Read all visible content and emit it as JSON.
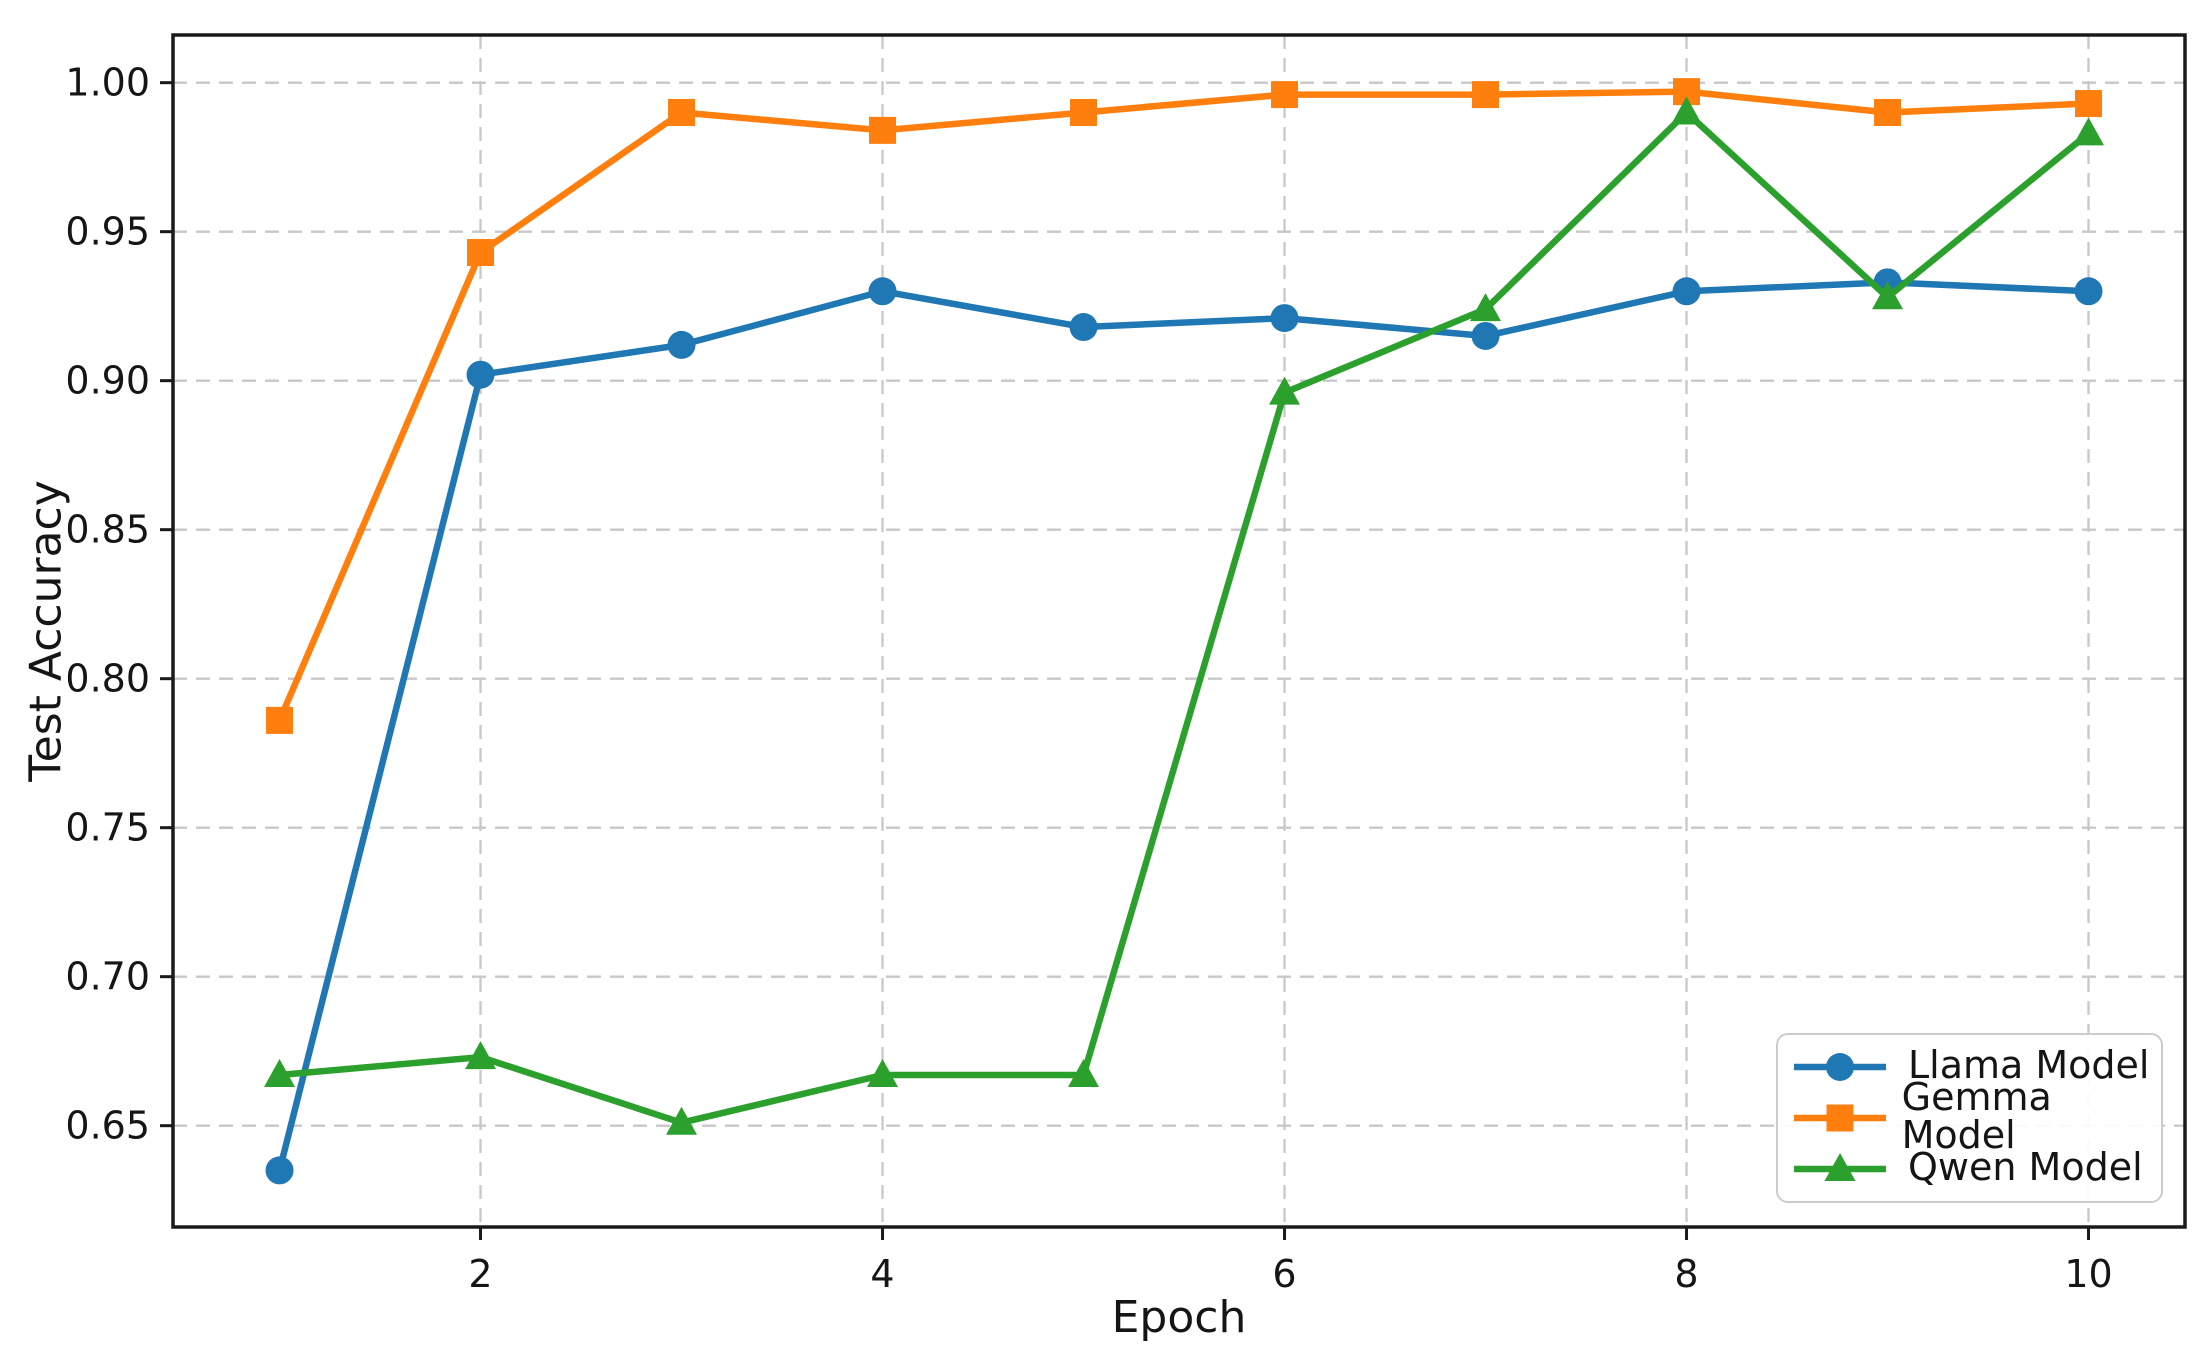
{
  "chart_data": {
    "type": "line",
    "title": "",
    "xlabel": "Epoch",
    "ylabel": "Test Accuracy",
    "x": [
      1,
      2,
      3,
      4,
      5,
      6,
      7,
      8,
      9,
      10
    ],
    "series": [
      {
        "name": "Llama Model",
        "color": "#1f77b4",
        "marker": "circle",
        "values": [
          0.635,
          0.902,
          0.912,
          0.93,
          0.918,
          0.921,
          0.915,
          0.93,
          0.933,
          0.93
        ]
      },
      {
        "name": "Gemma Model",
        "color": "#ff7f0e",
        "marker": "square",
        "values": [
          0.786,
          0.943,
          0.99,
          0.984,
          0.99,
          0.996,
          0.996,
          0.997,
          0.99,
          0.993
        ]
      },
      {
        "name": "Qwen Model",
        "color": "#2ca02c",
        "marker": "triangle",
        "values": [
          0.667,
          0.673,
          0.651,
          0.667,
          0.667,
          0.896,
          0.924,
          0.99,
          0.928,
          0.983
        ]
      }
    ],
    "xticks": [
      2,
      4,
      6,
      8,
      10
    ],
    "yticks": [
      0.65,
      0.7,
      0.75,
      0.8,
      0.85,
      0.9,
      0.95,
      1.0
    ],
    "xlim": [
      0.47,
      10.48
    ],
    "ylim": [
      0.616,
      1.016
    ],
    "grid": true,
    "grid_style": "dashed",
    "grid_color": "#c8c8c8",
    "frame_color": "#1a1a1a",
    "text_color": "#151515",
    "legend_position": "lower right"
  }
}
